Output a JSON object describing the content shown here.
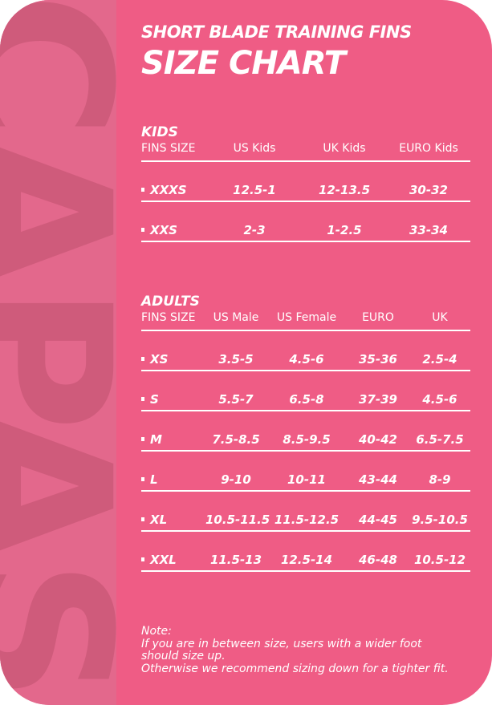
{
  "watermark": "CAPAS",
  "colors": {
    "background": "#ef5c85",
    "strip": "#e3688c",
    "watermark": "#cf5b7b",
    "text": "#ffffff"
  },
  "title": {
    "line1": "SHORT BLADE TRAINING FINS",
    "line2": "SIZE CHART"
  },
  "kids": {
    "title": "KIDS",
    "headers": [
      "FINS SIZE",
      "US Kids",
      "UK Kids",
      "EURO Kids"
    ],
    "rows": [
      [
        "XXXS",
        "12.5-1",
        "12-13.5",
        "30-32"
      ],
      [
        "XXS",
        "2-3",
        "1-2.5",
        "33-34"
      ]
    ]
  },
  "adults": {
    "title": "ADULTS",
    "headers": [
      "FINS SIZE",
      "US Male",
      "US Female",
      "EURO",
      "UK"
    ],
    "rows": [
      [
        "XS",
        "3.5-5",
        "4.5-6",
        "35-36",
        "2.5-4"
      ],
      [
        "S",
        "5.5-7",
        "6.5-8",
        "37-39",
        "4.5-6"
      ],
      [
        "M",
        "7.5-8.5",
        "8.5-9.5",
        "40-42",
        "6.5-7.5"
      ],
      [
        "L",
        "9-10",
        "10-11",
        "43-44",
        "8-9"
      ],
      [
        "XL",
        "10.5-11.5",
        "11.5-12.5",
        "44-45",
        "9.5-10.5"
      ],
      [
        "XXL",
        "11.5-13",
        "12.5-14",
        "46-48",
        "10.5-12"
      ]
    ]
  },
  "note": {
    "label": "Note:",
    "lines": [
      "If you are in between size, users with a wider foot",
      "should size up.",
      "Otherwise we recommend sizing down for a tighter fit."
    ]
  }
}
